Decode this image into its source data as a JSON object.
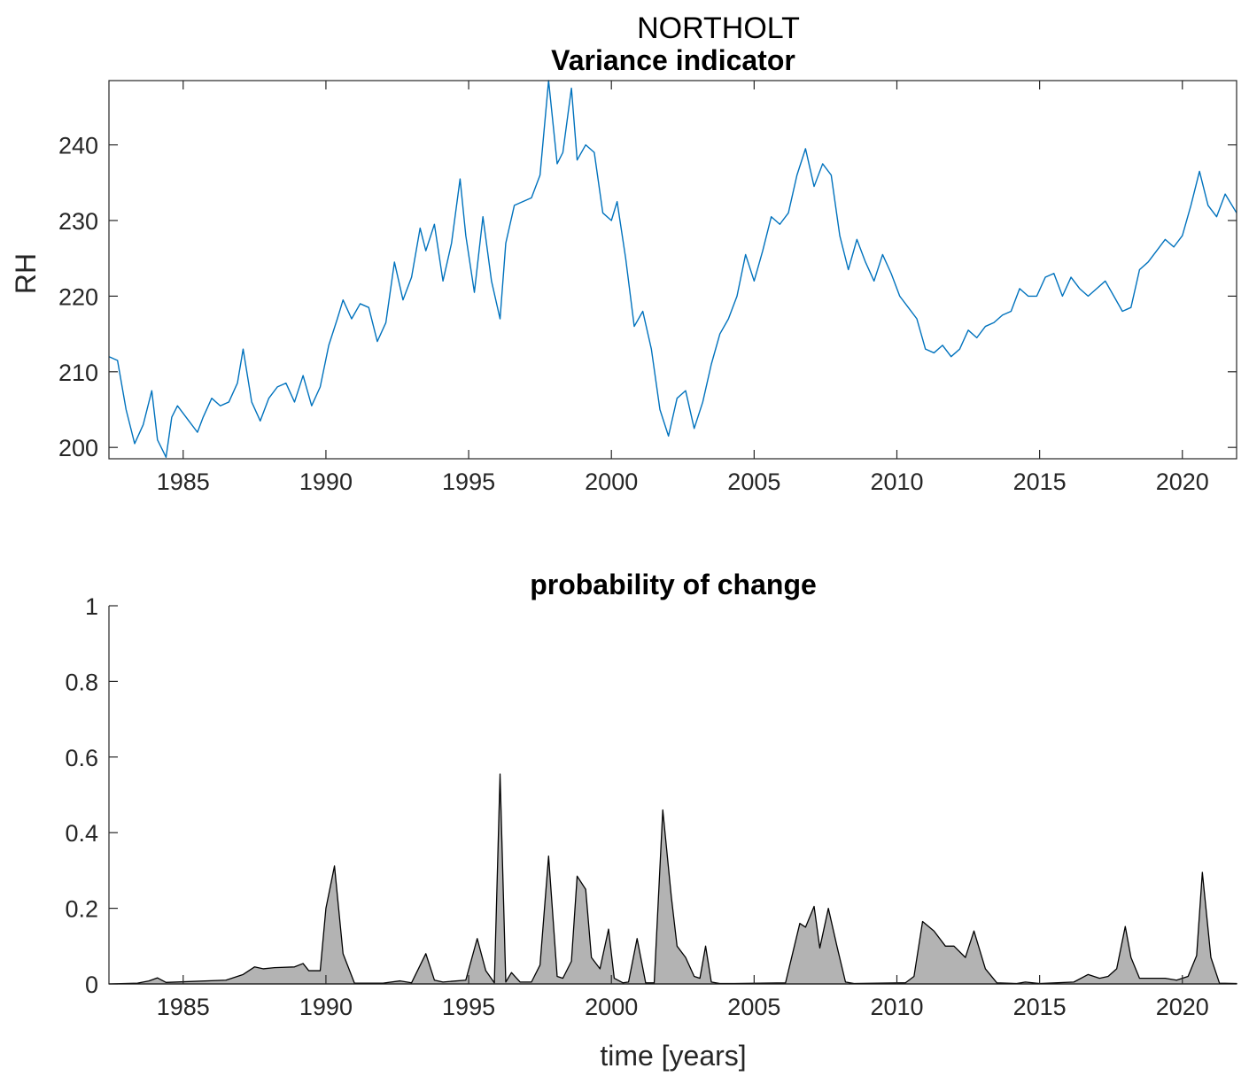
{
  "figure_title": "NORTHOLT",
  "chart_data": [
    {
      "type": "line",
      "title": "Variance indicator",
      "xlabel": "",
      "ylabel": "RH",
      "xlim": [
        1982.4,
        2021.9
      ],
      "ylim": [
        198.5,
        248.5
      ],
      "xticks": [
        1985,
        1990,
        1995,
        2000,
        2005,
        2010,
        2015,
        2020
      ],
      "xtick_labels": [
        "1985",
        "1990",
        "1995",
        "2000",
        "2005",
        "2010",
        "2015",
        "2020"
      ],
      "yticks": [
        200,
        210,
        220,
        230,
        240
      ],
      "ytick_labels": [
        "200",
        "210",
        "220",
        "230",
        "240"
      ],
      "grid": false,
      "line_color": "#0072bd",
      "x": [
        1982.4,
        1982.7,
        1983.0,
        1983.3,
        1983.6,
        1983.9,
        1984.1,
        1984.4,
        1984.6,
        1984.8,
        1985.2,
        1985.5,
        1985.7,
        1986.0,
        1986.3,
        1986.6,
        1986.9,
        1987.1,
        1987.4,
        1987.7,
        1988.0,
        1988.3,
        1988.6,
        1988.9,
        1989.2,
        1989.5,
        1989.8,
        1990.1,
        1990.4,
        1990.6,
        1990.9,
        1991.2,
        1991.5,
        1991.8,
        1992.1,
        1992.4,
        1992.7,
        1993.0,
        1993.3,
        1993.5,
        1993.8,
        1994.1,
        1994.4,
        1994.7,
        1994.9,
        1995.2,
        1995.5,
        1995.8,
        1996.1,
        1996.3,
        1996.6,
        1996.9,
        1997.2,
        1997.5,
        1997.8,
        1998.1,
        1998.3,
        1998.6,
        1998.8,
        1999.1,
        1999.4,
        1999.7,
        2000.0,
        2000.2,
        2000.5,
        2000.8,
        2001.1,
        2001.4,
        2001.7,
        2002.0,
        2002.3,
        2002.6,
        2002.9,
        2003.2,
        2003.5,
        2003.8,
        2004.1,
        2004.4,
        2004.7,
        2005.0,
        2005.3,
        2005.6,
        2005.9,
        2006.2,
        2006.5,
        2006.8,
        2007.1,
        2007.4,
        2007.7,
        2008.0,
        2008.3,
        2008.6,
        2008.9,
        2009.2,
        2009.5,
        2009.8,
        2010.1,
        2010.4,
        2010.7,
        2011.0,
        2011.3,
        2011.6,
        2011.9,
        2012.2,
        2012.5,
        2012.8,
        2013.1,
        2013.4,
        2013.7,
        2014.0,
        2014.3,
        2014.6,
        2014.9,
        2015.2,
        2015.5,
        2015.8,
        2016.1,
        2016.4,
        2016.7,
        2017.0,
        2017.3,
        2017.6,
        2017.9,
        2018.2,
        2018.5,
        2018.8,
        2019.1,
        2019.4,
        2019.7,
        2020.0,
        2020.3,
        2020.6,
        2020.9,
        2021.2,
        2021.5,
        2021.9
      ],
      "y": [
        212,
        211.5,
        205,
        200.5,
        203,
        207.5,
        201,
        198.7,
        204,
        205.5,
        203.5,
        202,
        204,
        206.5,
        205.5,
        206,
        208.5,
        213,
        206,
        203.5,
        206.5,
        208,
        208.5,
        206,
        209.5,
        205.5,
        208,
        213.5,
        217,
        219.5,
        217,
        219,
        218.5,
        214,
        216.5,
        224.5,
        219.5,
        222.5,
        229,
        226,
        229.5,
        222,
        227,
        235.5,
        228,
        220.5,
        230.5,
        222,
        217,
        227,
        232,
        232.5,
        233,
        236,
        248.5,
        237.5,
        239,
        247.5,
        238,
        240,
        239,
        231,
        230,
        232.5,
        225,
        216,
        218,
        213,
        205,
        201.5,
        206.5,
        207.5,
        202.5,
        206,
        211,
        215,
        217,
        220,
        225.5,
        222,
        226,
        230.5,
        229.5,
        231,
        236,
        239.5,
        234.5,
        237.5,
        236,
        228,
        223.5,
        227.5,
        224.5,
        222,
        225.5,
        223,
        220,
        218.5,
        217,
        213,
        212.5,
        213.5,
        212,
        213,
        215.5,
        214.5,
        216,
        216.5,
        217.5,
        218,
        221,
        220,
        220,
        222.5,
        223,
        220,
        222.5,
        221,
        220,
        221,
        222,
        220,
        218,
        218.5,
        223.5,
        224.5,
        226,
        227.5,
        226.5,
        228,
        232,
        236.5,
        232,
        230.5,
        233.5,
        231
      ]
    },
    {
      "type": "area",
      "title": "probability of change",
      "xlabel": "time [years]",
      "ylabel": "",
      "xlim": [
        1982.4,
        2021.9
      ],
      "ylim": [
        0,
        1
      ],
      "xticks": [
        1985,
        1990,
        1995,
        2000,
        2005,
        2010,
        2015,
        2020
      ],
      "xtick_labels": [
        "1985",
        "1990",
        "1995",
        "2000",
        "2005",
        "2010",
        "2015",
        "2020"
      ],
      "yticks": [
        0,
        0.2,
        0.4,
        0.6,
        0.8,
        1
      ],
      "ytick_labels": [
        "0",
        "0.2",
        "0.4",
        "0.6",
        "0.8",
        "1"
      ],
      "grid": false,
      "fill_color": "#b3b3b3",
      "edge_color": "#000000",
      "x": [
        1982.4,
        1983.4,
        1983.8,
        1984.1,
        1984.4,
        1986.5,
        1987.1,
        1987.5,
        1987.8,
        1988.2,
        1988.9,
        1989.2,
        1989.4,
        1989.8,
        1990.0,
        1990.3,
        1990.6,
        1991.0,
        1992.0,
        1992.6,
        1993.0,
        1993.5,
        1993.8,
        1994.1,
        1994.9,
        1995.3,
        1995.6,
        1995.9,
        1996.1,
        1996.3,
        1996.5,
        1996.8,
        1997.2,
        1997.5,
        1997.8,
        1998.1,
        1998.3,
        1998.6,
        1998.8,
        1999.1,
        1999.3,
        1999.6,
        1999.9,
        2000.1,
        2000.4,
        2000.6,
        2000.9,
        2001.2,
        2001.5,
        2001.8,
        2002.1,
        2002.3,
        2002.6,
        2002.9,
        2003.1,
        2003.3,
        2003.5,
        2003.8,
        2004.3,
        2006.1,
        2006.6,
        2006.8,
        2007.1,
        2007.3,
        2007.6,
        2007.9,
        2008.2,
        2008.5,
        2010.3,
        2010.6,
        2010.9,
        2011.3,
        2011.7,
        2012.0,
        2012.4,
        2012.7,
        2013.1,
        2013.5,
        2014.2,
        2014.5,
        2015.0,
        2016.2,
        2016.7,
        2017.1,
        2017.4,
        2017.7,
        2018.0,
        2018.2,
        2018.5,
        2019.4,
        2019.8,
        2020.2,
        2020.5,
        2020.7,
        2021.0,
        2021.3,
        2021.9
      ],
      "y": [
        0,
        0.002,
        0.008,
        0.016,
        0.004,
        0.01,
        0.025,
        0.045,
        0.04,
        0.043,
        0.045,
        0.054,
        0.035,
        0.035,
        0.2,
        0.312,
        0.08,
        0.002,
        0.002,
        0.008,
        0.003,
        0.08,
        0.01,
        0.005,
        0.01,
        0.12,
        0.035,
        0.003,
        0.555,
        0.005,
        0.03,
        0.005,
        0.005,
        0.05,
        0.338,
        0.02,
        0.015,
        0.06,
        0.285,
        0.25,
        0.07,
        0.04,
        0.145,
        0.015,
        0.003,
        0.005,
        0.12,
        0.003,
        0.003,
        0.46,
        0.23,
        0.1,
        0.07,
        0.02,
        0.015,
        0.1,
        0.005,
        0.001,
        0.001,
        0.003,
        0.16,
        0.15,
        0.205,
        0.095,
        0.2,
        0.1,
        0.005,
        0.001,
        0.003,
        0.02,
        0.165,
        0.14,
        0.1,
        0.1,
        0.07,
        0.14,
        0.04,
        0.003,
        0.001,
        0.005,
        0.001,
        0.005,
        0.025,
        0.015,
        0.02,
        0.04,
        0.152,
        0.07,
        0.015,
        0.015,
        0.01,
        0.02,
        0.075,
        0.295,
        0.07,
        0.002,
        0.001
      ]
    }
  ]
}
